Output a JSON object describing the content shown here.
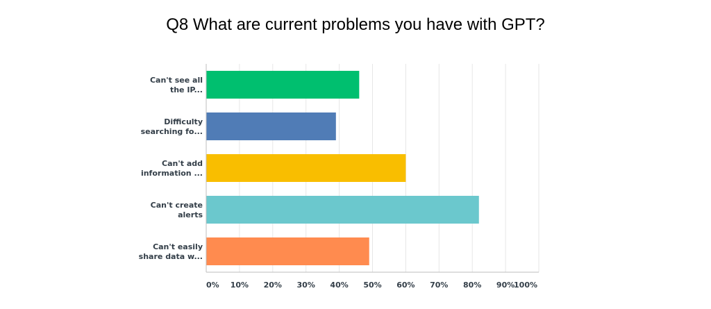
{
  "chart_data": {
    "type": "bar",
    "orientation": "horizontal",
    "title": "Q8 What are current problems you have with GPT?",
    "categories": [
      [
        "Can't see all",
        "the IP..."
      ],
      [
        "Difficulty",
        "searching fo..."
      ],
      [
        "Can't add",
        "information ..."
      ],
      [
        "Can't create",
        "alerts"
      ],
      [
        "Can't easily",
        "share data w..."
      ]
    ],
    "values": [
      46,
      39,
      60,
      82,
      49
    ],
    "colors": [
      "#00bf6f",
      "#507cb6",
      "#f9be00",
      "#6bc8cd",
      "#ff8b4f"
    ],
    "xlim": [
      0,
      100
    ],
    "x_ticks": [
      "0%",
      "10%",
      "20%",
      "30%",
      "40%",
      "50%",
      "60%",
      "70%",
      "80%",
      "90%",
      "100%"
    ],
    "grid": true,
    "legend": "none"
  }
}
